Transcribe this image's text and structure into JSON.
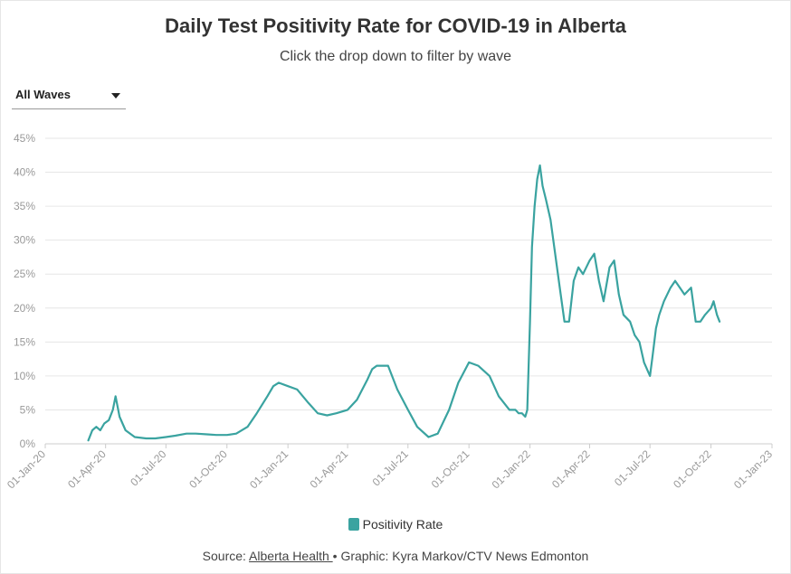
{
  "header": {
    "title": "Daily Test Positivity Rate for COVID-19 in Alberta",
    "subtitle": "Click the drop down to filter by wave"
  },
  "filter": {
    "selected": "All Waves"
  },
  "legend": {
    "label": "Positivity Rate"
  },
  "footer": {
    "prefix": "Source: ",
    "source_link": "Alberta Health ",
    "separator": "•",
    "credit": " Graphic: Kyra Markov/CTV News Edmonton"
  },
  "colors": {
    "series": "#3aa3a0",
    "grid": "#e6e6e6",
    "axis_text": "#999999"
  },
  "chart_data": {
    "type": "line",
    "title": "Daily Test Positivity Rate for COVID-19 in Alberta",
    "series": [
      {
        "name": "Positivity Rate",
        "x": [
          "2020-03-06",
          "2020-03-12",
          "2020-03-18",
          "2020-03-24",
          "2020-03-30",
          "2020-04-06",
          "2020-04-12",
          "2020-04-16",
          "2020-04-22",
          "2020-05-01",
          "2020-05-15",
          "2020-06-01",
          "2020-06-15",
          "2020-07-01",
          "2020-07-15",
          "2020-08-01",
          "2020-08-15",
          "2020-09-01",
          "2020-09-15",
          "2020-10-01",
          "2020-10-15",
          "2020-11-01",
          "2020-11-15",
          "2020-12-01",
          "2020-12-10",
          "2020-12-18",
          "2021-01-01",
          "2021-01-15",
          "2021-02-01",
          "2021-02-15",
          "2021-03-01",
          "2021-03-15",
          "2021-04-01",
          "2021-04-15",
          "2021-05-01",
          "2021-05-08",
          "2021-05-15",
          "2021-06-01",
          "2021-06-15",
          "2021-07-01",
          "2021-07-15",
          "2021-08-01",
          "2021-08-15",
          "2021-09-01",
          "2021-09-15",
          "2021-10-01",
          "2021-10-15",
          "2021-11-01",
          "2021-11-15",
          "2021-12-01",
          "2021-12-10",
          "2021-12-15",
          "2021-12-20",
          "2021-12-25",
          "2021-12-28",
          "2022-01-01",
          "2022-01-04",
          "2022-01-08",
          "2022-01-12",
          "2022-01-16",
          "2022-01-20",
          "2022-01-25",
          "2022-02-01",
          "2022-02-08",
          "2022-02-15",
          "2022-02-22",
          "2022-03-01",
          "2022-03-08",
          "2022-03-15",
          "2022-03-22",
          "2022-04-01",
          "2022-04-08",
          "2022-04-15",
          "2022-04-22",
          "2022-05-01",
          "2022-05-08",
          "2022-05-15",
          "2022-05-22",
          "2022-06-01",
          "2022-06-08",
          "2022-06-15",
          "2022-06-22",
          "2022-07-01",
          "2022-07-05",
          "2022-07-10",
          "2022-07-15",
          "2022-07-22",
          "2022-08-01",
          "2022-08-08",
          "2022-08-15",
          "2022-08-22",
          "2022-09-01",
          "2022-09-08",
          "2022-09-15",
          "2022-09-22",
          "2022-10-01",
          "2022-10-05",
          "2022-10-10",
          "2022-10-14"
        ],
        "y": [
          0.5,
          2,
          2.5,
          2,
          3,
          3.5,
          5,
          7,
          4,
          2,
          1,
          0.8,
          0.8,
          1,
          1.2,
          1.5,
          1.5,
          1.4,
          1.3,
          1.3,
          1.5,
          2.5,
          4.5,
          7,
          8.5,
          9,
          8.5,
          8,
          6,
          4.5,
          4.2,
          4.5,
          5,
          6.5,
          9.5,
          11,
          11.5,
          11.5,
          8,
          5,
          2.5,
          1,
          1.5,
          5,
          9,
          12,
          11.5,
          10,
          7,
          5,
          5,
          4.5,
          4.5,
          4,
          5,
          18,
          29,
          35,
          39,
          41,
          38,
          36,
          33,
          28,
          23,
          18,
          18,
          24,
          26,
          25,
          27,
          28,
          24,
          21,
          26,
          27,
          22,
          19,
          18,
          16,
          15,
          12,
          10,
          13,
          17,
          19,
          21,
          23,
          24,
          23,
          22,
          23,
          18,
          18,
          19,
          20,
          21,
          19,
          18
        ]
      }
    ],
    "xlabel": "",
    "ylabel": "",
    "xlim": [
      "2020-01-01",
      "2023-01-01"
    ],
    "ylim": [
      0,
      45
    ],
    "x_ticks": [
      "01-Jan-20",
      "01-Apr-20",
      "01-Jul-20",
      "01-Oct-20",
      "01-Jan-21",
      "01-Apr-21",
      "01-Jul-21",
      "01-Oct-21",
      "01-Jan-22",
      "01-Apr-22",
      "01-Jul-22",
      "01-Oct-22",
      "01-Jan-23"
    ],
    "x_tick_dates": [
      "2020-01-01",
      "2020-04-01",
      "2020-07-01",
      "2020-10-01",
      "2021-01-01",
      "2021-04-01",
      "2021-07-01",
      "2021-10-01",
      "2022-01-01",
      "2022-04-01",
      "2022-07-01",
      "2022-10-01",
      "2023-01-01"
    ],
    "y_ticks": [
      "0%",
      "5%",
      "10%",
      "15%",
      "20%",
      "25%",
      "30%",
      "35%",
      "40%",
      "45%"
    ],
    "y_tick_values": [
      0,
      5,
      10,
      15,
      20,
      25,
      30,
      35,
      40,
      45
    ],
    "grid": true,
    "legend_position": "bottom"
  }
}
